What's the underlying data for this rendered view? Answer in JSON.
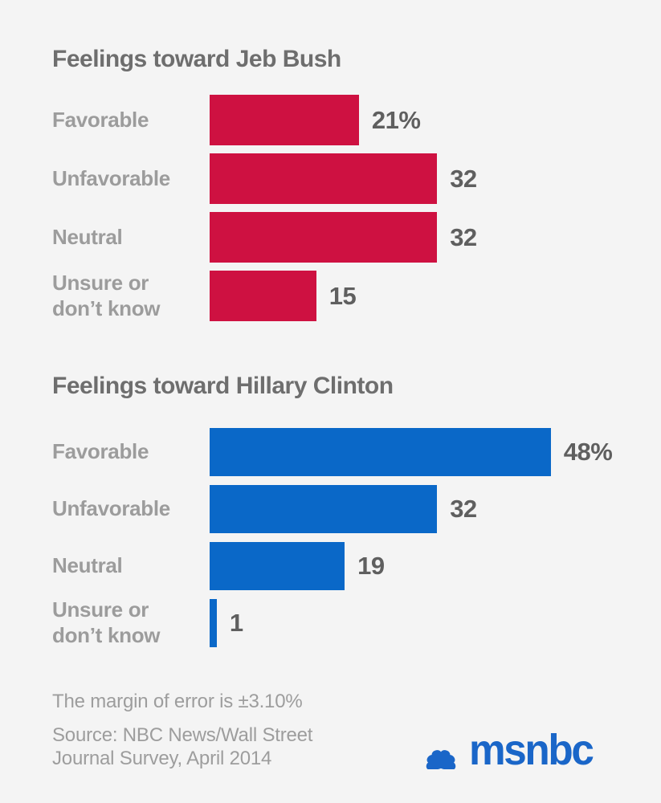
{
  "page": {
    "background": "#f4f4f4"
  },
  "chart_data": [
    {
      "type": "bar",
      "orientation": "horizontal",
      "title": "Feelings toward Jeb Bush",
      "categories": [
        "Favorable",
        "Unfavorable",
        "Neutral",
        "Unsure or\ndon’t know"
      ],
      "values": [
        21,
        32,
        32,
        15
      ],
      "value_labels": [
        "21%",
        "32",
        "32",
        "15"
      ],
      "color": "#ce1141",
      "xlabel": "",
      "ylabel": "",
      "xlim": [
        0,
        48
      ],
      "grid": false,
      "legend": "none"
    },
    {
      "type": "bar",
      "orientation": "horizontal",
      "title": "Feelings toward Hillary Clinton",
      "categories": [
        "Favorable",
        "Unfavorable",
        "Neutral",
        "Unsure or\ndon’t know"
      ],
      "values": [
        48,
        32,
        19,
        1
      ],
      "value_labels": [
        "48%",
        "32",
        "19",
        "1"
      ],
      "color": "#0a68c8",
      "xlabel": "",
      "ylabel": "",
      "xlim": [
        0,
        48
      ],
      "grid": false,
      "legend": "none"
    }
  ],
  "footer": {
    "margin_note": "The margin of error is ±3.10%",
    "source_line1": "Source: NBC News/Wall Street",
    "source_line2": "Journal Survey, April 2014",
    "logo_text": "msnbc",
    "logo_color": "#1a66c8",
    "logo_icon": "nbc-peacock-icon"
  }
}
